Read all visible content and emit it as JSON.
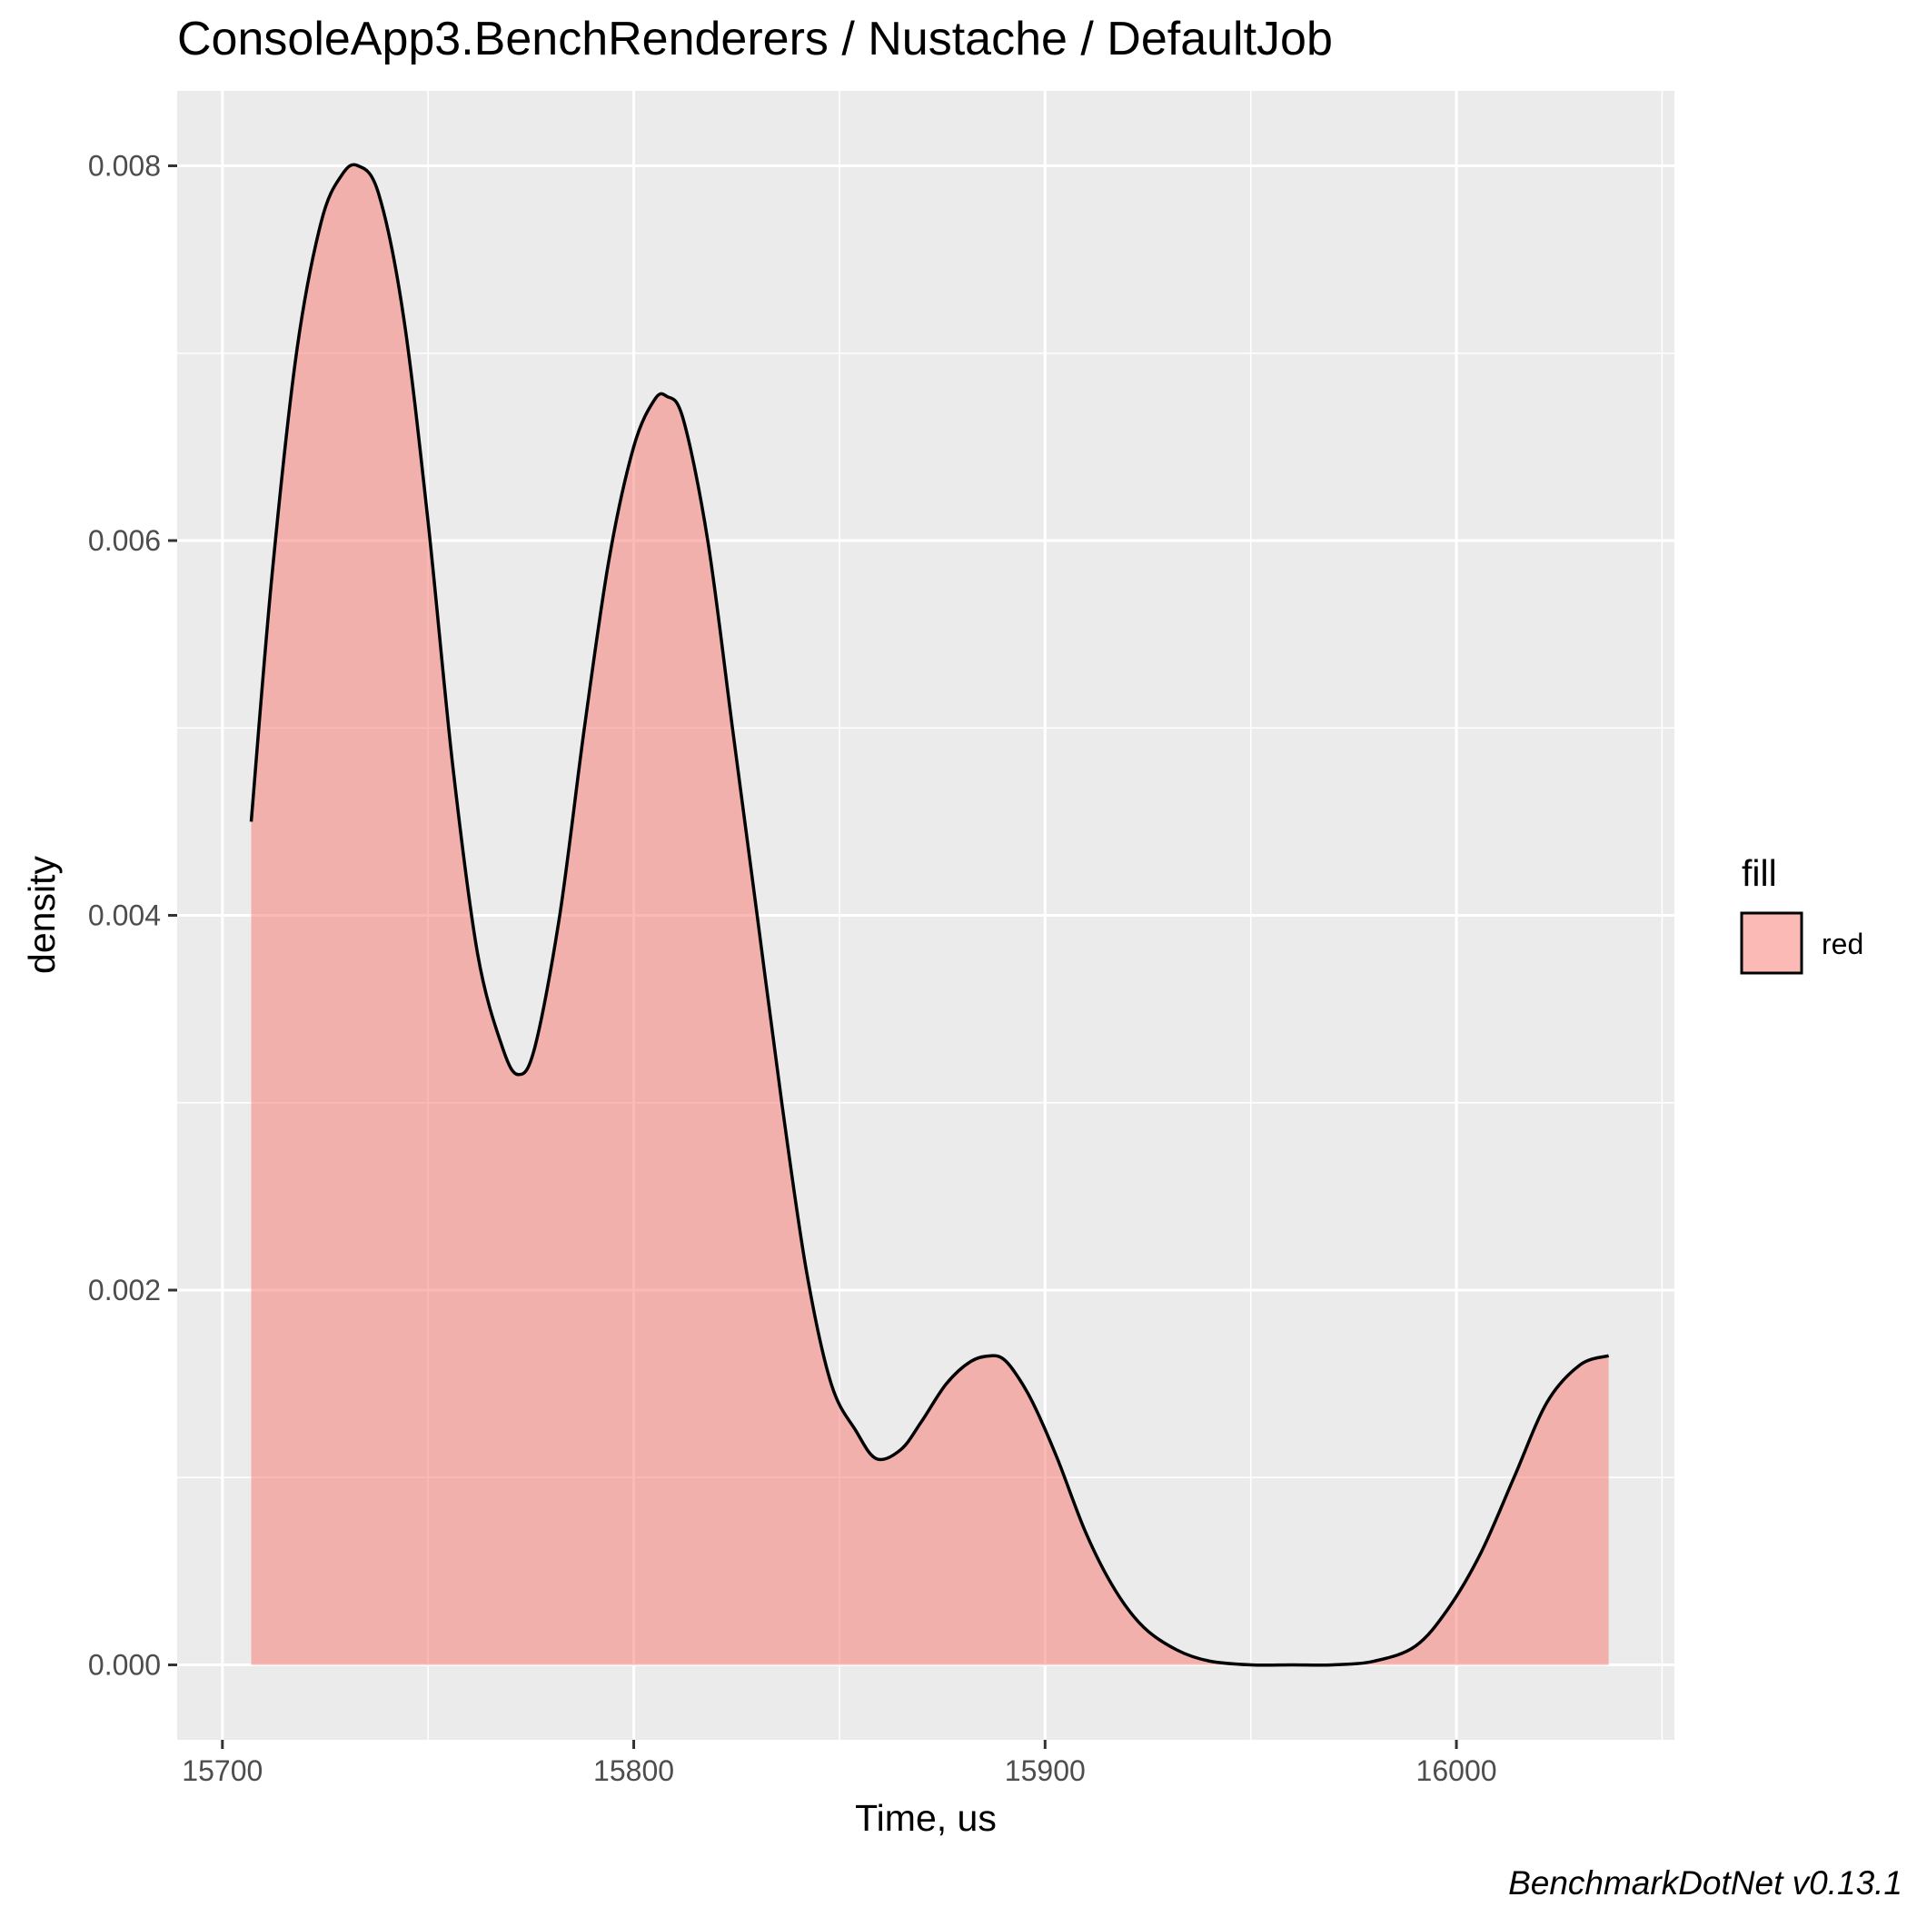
{
  "chart_data": {
    "type": "area",
    "title": "ConsoleApp3.BenchRenderers / Nustache / DefaultJob",
    "xlabel": "Time, us",
    "ylabel": "density",
    "caption": "BenchmarkDotNet v0.13.1",
    "xlim": [
      15689,
      16053
    ],
    "ylim": [
      -0.0004,
      0.0084
    ],
    "x_ticks": [
      15700,
      15800,
      15900,
      16000
    ],
    "x_tick_labels": [
      "15700",
      "15800",
      "15900",
      "16000"
    ],
    "y_ticks": [
      0.0,
      0.002,
      0.004,
      0.006,
      0.008
    ],
    "y_tick_labels": [
      "0.000",
      "0.002",
      "0.004",
      "0.006",
      "0.008"
    ],
    "grid": true,
    "legend": {
      "title": "fill",
      "position": "right",
      "entries": [
        {
          "label": "red",
          "color": "#F8766D"
        }
      ]
    },
    "fill_color": "#F8766D",
    "fill_opacity": 0.5,
    "line_color": "#000000",
    "panel_background": "#EBEBEB",
    "series": [
      {
        "x": [
          15707,
          15712,
          15718,
          15724,
          15729,
          15733,
          15738,
          15744,
          15750,
          15756,
          15762,
          15768,
          15772,
          15776,
          15782,
          15788,
          15794,
          15800,
          15805,
          15808,
          15812,
          15818,
          15824,
          15830,
          15836,
          15842,
          15848,
          15854,
          15859,
          15865,
          15870,
          15876,
          15882,
          15887,
          15890,
          15893,
          15897,
          15903,
          15910,
          15917,
          15924,
          15932,
          15940,
          15950,
          15960,
          15970,
          15980,
          15990,
          15998,
          16006,
          16014,
          16022,
          16030,
          16037
        ],
        "y": [
          0.0045,
          0.0058,
          0.007,
          0.0077,
          0.00795,
          0.008,
          0.00785,
          0.0072,
          0.0061,
          0.0048,
          0.0038,
          0.0033,
          0.00315,
          0.0033,
          0.004,
          0.005,
          0.0059,
          0.0065,
          0.00675,
          0.00677,
          0.00665,
          0.006,
          0.005,
          0.004,
          0.003,
          0.0021,
          0.0015,
          0.00125,
          0.0011,
          0.00115,
          0.0013,
          0.0015,
          0.00162,
          0.00165,
          0.00163,
          0.00155,
          0.0014,
          0.0011,
          0.0007,
          0.0004,
          0.0002,
          8e-05,
          2e-05,
          0.0,
          0.0,
          0.0,
          2e-05,
          0.0001,
          0.0003,
          0.0006,
          0.001,
          0.0014,
          0.0016,
          0.00165
        ]
      }
    ]
  }
}
